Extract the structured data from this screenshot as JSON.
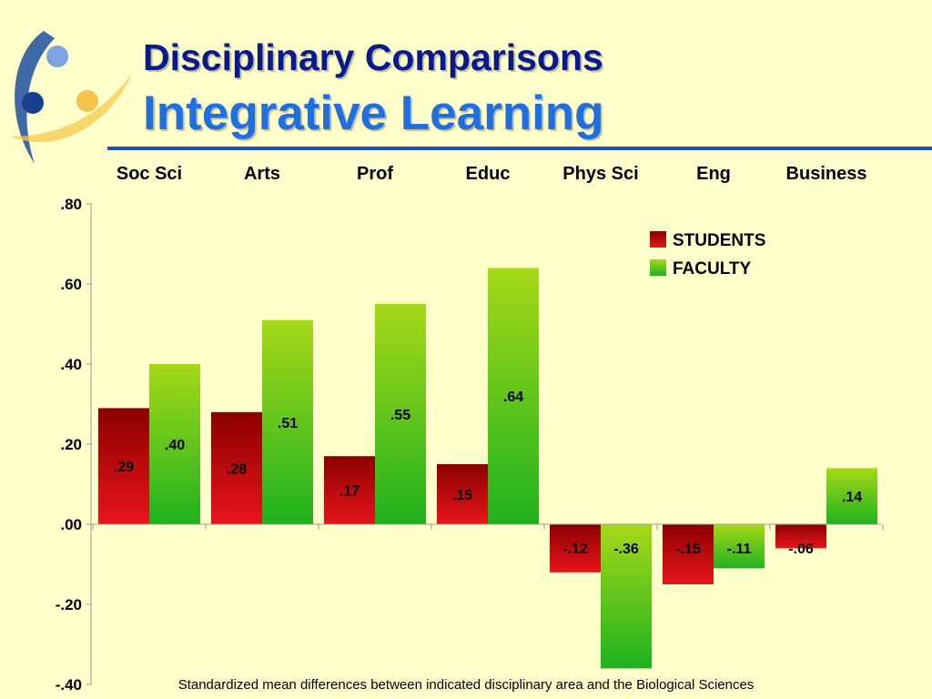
{
  "slide": {
    "title_line1": "Disciplinary Comparisons",
    "title_line2": "Integrative Learning",
    "footnote": "Standardized mean differences between indicated disciplinary area and the Biological Sciences"
  },
  "colors": {
    "background": "#ffffcc",
    "students_top": "#8b0000",
    "students_bottom": "#e8151b",
    "faculty_top": "#a6d818",
    "faculty_bottom": "#1fb21f",
    "rule": "#1f4fcf"
  },
  "chart_data": {
    "type": "bar",
    "categories": [
      "Soc Sci",
      "Arts",
      "Prof",
      "Educ",
      "Phys Sci",
      "Eng",
      "Business"
    ],
    "category_axis_position": "top",
    "series": [
      {
        "name": "STUDENTS",
        "values": [
          0.29,
          0.28,
          0.17,
          0.15,
          -0.12,
          -0.15,
          -0.06
        ],
        "labels": [
          ".29",
          ".28",
          ".17",
          ".15",
          "-.12",
          "-.15",
          "-.06"
        ]
      },
      {
        "name": "FACULTY",
        "values": [
          0.4,
          0.51,
          0.55,
          0.64,
          -0.36,
          -0.11,
          0.14
        ],
        "labels": [
          ".40",
          ".51",
          ".55",
          ".64",
          "-.36",
          "-.11",
          ".14"
        ]
      }
    ],
    "ylim": [
      -0.4,
      0.8
    ],
    "yticks": [
      0.8,
      0.6,
      0.4,
      0.2,
      0.0,
      -0.2,
      -0.4
    ],
    "ytick_labels": [
      ".80",
      ".60",
      ".40",
      ".20",
      ".00",
      "-.20",
      "-.40"
    ],
    "legend": {
      "position": "top-right",
      "entries": [
        "STUDENTS",
        "FACULTY"
      ]
    },
    "grid": false
  }
}
